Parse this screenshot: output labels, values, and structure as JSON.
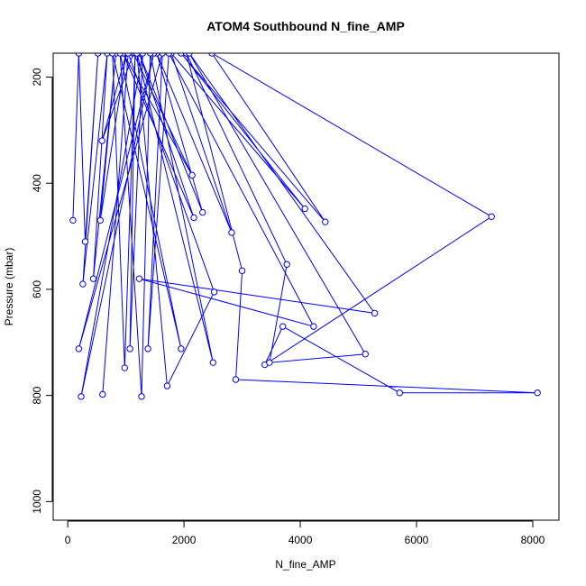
{
  "chart_data": {
    "type": "line",
    "title": "ATOM4 Southbound N_fine_AMP",
    "xlabel": "N_fine_AMP",
    "ylabel": "Pressure (mbar)",
    "xlim": [
      -250,
      8450
    ],
    "ylim": [
      1035,
      155
    ],
    "y_reversed": true,
    "x_ticks": [
      0,
      2000,
      4000,
      6000,
      8000
    ],
    "x_tick_labels": [
      "0",
      "2000",
      "4000",
      "6000",
      "8000"
    ],
    "y_ticks": [
      200,
      400,
      600,
      800,
      1000
    ],
    "y_tick_labels": [
      "200",
      "400",
      "600",
      "800",
      "1000"
    ],
    "grid": false,
    "series": [
      {
        "color": "#0000ff",
        "marker": "open-circle",
        "points": [
          {
            "x": 90,
            "y": 470
          },
          {
            "x": 190,
            "y": 155
          },
          {
            "x": 300,
            "y": 510
          },
          {
            "x": 520,
            "y": 155
          },
          {
            "x": 260,
            "y": 590
          },
          {
            "x": 680,
            "y": 155
          },
          {
            "x": 440,
            "y": 580
          },
          {
            "x": 830,
            "y": 155
          },
          {
            "x": 560,
            "y": 470
          },
          {
            "x": 1010,
            "y": 155
          },
          {
            "x": 590,
            "y": 320
          },
          {
            "x": 1130,
            "y": 155
          },
          {
            "x": 2140,
            "y": 385
          },
          {
            "x": 950,
            "y": 155
          },
          {
            "x": 2170,
            "y": 465
          },
          {
            "x": 1230,
            "y": 155
          },
          {
            "x": 2320,
            "y": 455
          },
          {
            "x": 1530,
            "y": 155
          },
          {
            "x": 2820,
            "y": 493
          },
          {
            "x": 1780,
            "y": 155
          },
          {
            "x": 4080,
            "y": 448
          },
          {
            "x": 1950,
            "y": 155
          },
          {
            "x": 4430,
            "y": 473
          },
          {
            "x": 2480,
            "y": 155
          },
          {
            "x": 7290,
            "y": 463
          },
          {
            "x": 3390,
            "y": 742
          },
          {
            "x": 3700,
            "y": 670
          },
          {
            "x": 5710,
            "y": 795
          },
          {
            "x": 8080,
            "y": 795
          },
          {
            "x": 2890,
            "y": 770
          },
          {
            "x": 3000,
            "y": 565
          },
          {
            "x": 2040,
            "y": 155
          },
          {
            "x": 3770,
            "y": 553
          },
          {
            "x": 3470,
            "y": 738
          },
          {
            "x": 5120,
            "y": 722
          },
          {
            "x": 2090,
            "y": 155
          },
          {
            "x": 5280,
            "y": 645
          },
          {
            "x": 1230,
            "y": 580
          },
          {
            "x": 4230,
            "y": 670
          },
          {
            "x": 1740,
            "y": 155
          },
          {
            "x": 1380,
            "y": 712
          },
          {
            "x": 1630,
            "y": 155
          },
          {
            "x": 190,
            "y": 712
          },
          {
            "x": 1480,
            "y": 155
          },
          {
            "x": 230,
            "y": 802
          },
          {
            "x": 1290,
            "y": 155
          },
          {
            "x": 1070,
            "y": 712
          },
          {
            "x": 1160,
            "y": 155
          },
          {
            "x": 980,
            "y": 748
          },
          {
            "x": 770,
            "y": 155
          },
          {
            "x": 1950,
            "y": 712
          },
          {
            "x": 900,
            "y": 155
          },
          {
            "x": 1270,
            "y": 802
          },
          {
            "x": 1420,
            "y": 155
          },
          {
            "x": 2500,
            "y": 738
          },
          {
            "x": 1190,
            "y": 155
          },
          {
            "x": 1710,
            "y": 782
          },
          {
            "x": 2520,
            "y": 605
          },
          {
            "x": 1040,
            "y": 155
          },
          {
            "x": 600,
            "y": 798
          }
        ]
      }
    ]
  }
}
